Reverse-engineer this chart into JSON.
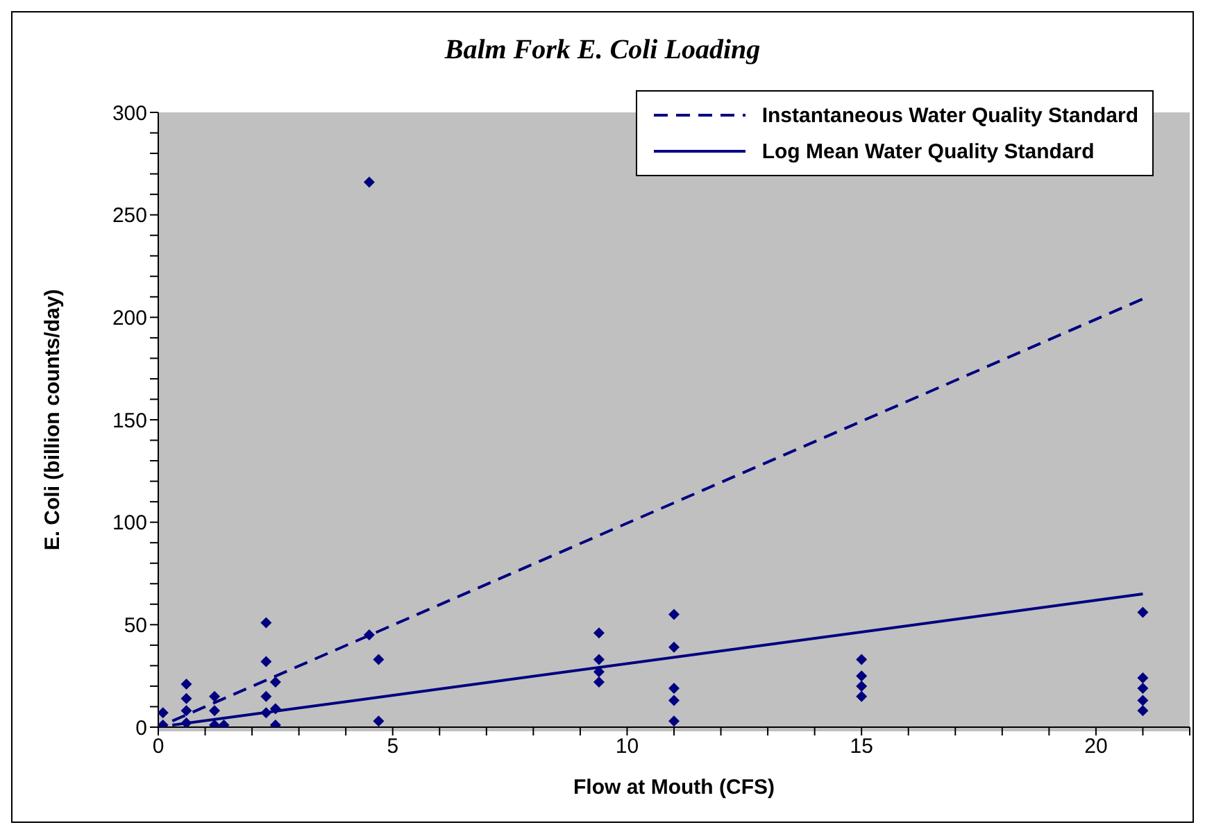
{
  "chart_data": {
    "type": "scatter",
    "title": "Balm Fork E. Coli Loading",
    "xlabel": "Flow at Mouth (CFS)",
    "ylabel": "E. Coli (billion counts/day)",
    "xlim": [
      0,
      22
    ],
    "ylim": [
      0,
      300
    ],
    "xticks": [
      0,
      {
        "value": 1,
        "label": null
      },
      {
        "value": 2,
        "label": null
      },
      {
        "value": 3,
        "label": null
      },
      {
        "value": 4,
        "label": null
      },
      5,
      {
        "value": 6,
        "label": null
      },
      {
        "value": 7,
        "label": null
      },
      {
        "value": 8,
        "label": null
      },
      {
        "value": 9,
        "label": null
      },
      10,
      {
        "value": 11,
        "label": null
      },
      {
        "value": 12,
        "label": null
      },
      {
        "value": 13,
        "label": null
      },
      {
        "value": 14,
        "label": null
      },
      15,
      {
        "value": 16,
        "label": null
      },
      {
        "value": 17,
        "label": null
      },
      {
        "value": 18,
        "label": null
      },
      {
        "value": 19,
        "label": null
      },
      20,
      {
        "value": 21,
        "label": null
      },
      {
        "value": 22,
        "label": null
      }
    ],
    "yticks": [
      0,
      {
        "value": 10,
        "label": null
      },
      {
        "value": 20,
        "label": null
      },
      {
        "value": 30,
        "label": null
      },
      {
        "value": 40,
        "label": null
      },
      50,
      {
        "value": 60,
        "label": null
      },
      {
        "value": 70,
        "label": null
      },
      {
        "value": 80,
        "label": null
      },
      {
        "value": 90,
        "label": null
      },
      100,
      {
        "value": 110,
        "label": null
      },
      {
        "value": 120,
        "label": null
      },
      {
        "value": 130,
        "label": null
      },
      {
        "value": 140,
        "label": null
      },
      150,
      {
        "value": 160,
        "label": null
      },
      {
        "value": 170,
        "label": null
      },
      {
        "value": 180,
        "label": null
      },
      {
        "value": 190,
        "label": null
      },
      200,
      {
        "value": 210,
        "label": null
      },
      {
        "value": 220,
        "label": null
      },
      {
        "value": 230,
        "label": null
      },
      {
        "value": 240,
        "label": null
      },
      250,
      {
        "value": 260,
        "label": null
      },
      {
        "value": 270,
        "label": null
      },
      {
        "value": 280,
        "label": null
      },
      {
        "value": 290,
        "label": null
      },
      300
    ],
    "legend": "top right",
    "series": [
      {
        "marker": "diamond",
        "color": "#000080",
        "x": [
          0.1,
          0.1,
          0.6,
          0.6,
          0.6,
          0.6,
          1.2,
          1.2,
          1.2,
          1.4,
          2.3,
          2.3,
          2.3,
          2.3,
          2.5,
          2.5,
          2.5,
          4.5,
          4.5,
          4.7,
          4.7,
          9.4,
          9.4,
          9.4,
          9.4,
          11,
          11,
          11,
          11,
          11,
          15,
          15,
          15,
          15,
          21,
          21,
          21,
          21,
          21
        ],
        "values": [
          1,
          7,
          2,
          8,
          14,
          21,
          1,
          8,
          15,
          1,
          51,
          32,
          15,
          7,
          22,
          9,
          1,
          266,
          45,
          33,
          3,
          46,
          33,
          27,
          22,
          55,
          39,
          19,
          13,
          3,
          33,
          25,
          20,
          15,
          56,
          24,
          19,
          13,
          8
        ]
      },
      {
        "type": "line",
        "name": "Instantaneous Water Quality Standard",
        "color": "#000080",
        "line_style": "dashed",
        "marker": "none",
        "x": [
          0.3,
          21
        ],
        "values": [
          3,
          209
        ]
      },
      {
        "type": "line",
        "name": "Log Mean Water Quality Standard",
        "color": "#000080",
        "line_style": "solid",
        "marker": "none",
        "x": [
          0.3,
          21
        ],
        "values": [
          1,
          65
        ]
      }
    ]
  }
}
